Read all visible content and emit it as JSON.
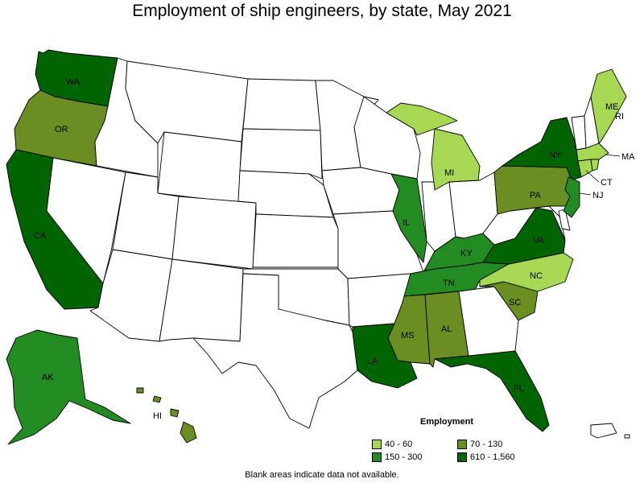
{
  "title": "Employment of ship engineers, by state, May 2021",
  "footnote": "Blank areas indicate data not available.",
  "colors": {
    "none": "#ffffff",
    "range_40_60": "#a6d854",
    "range_70_130": "#6b8e23",
    "range_150_300": "#228b22",
    "range_610_1560": "#006400"
  },
  "legend": {
    "title": "Employment",
    "items": [
      {
        "label": "40 - 60",
        "color": "#a6d854"
      },
      {
        "label": "70 - 130",
        "color": "#6b8e23"
      },
      {
        "label": "150 - 300",
        "color": "#228b22"
      },
      {
        "label": "610 - 1,560",
        "color": "#006400"
      }
    ]
  },
  "state_labels": {
    "WA": "WA",
    "OR": "OR",
    "CA": "CA",
    "AK": "AK",
    "HI": "HI",
    "IL": "IL",
    "KY": "KY",
    "TN": "TN",
    "MS": "MS",
    "AL": "AL",
    "LA": "LA",
    "FL": "FL",
    "SC": "SC",
    "NC": "NC",
    "VA": "VA",
    "PA": "PA",
    "NY": "NY",
    "NJ": "NJ",
    "CT": "CT",
    "MA": "MA",
    "RI": "RI",
    "ME": "ME",
    "MI": "MI"
  }
}
